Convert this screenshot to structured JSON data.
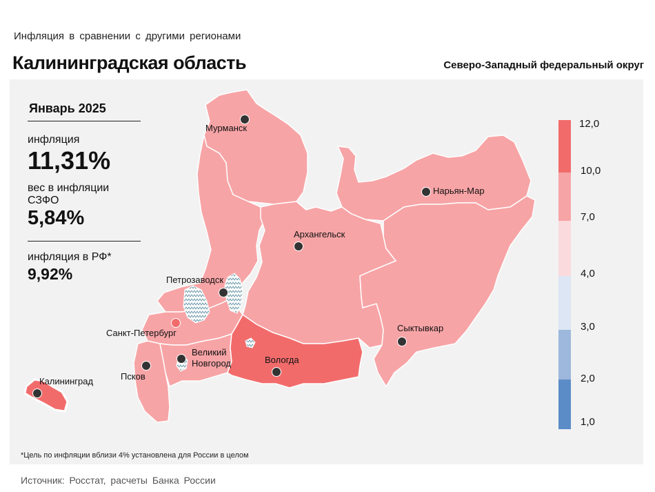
{
  "header": {
    "subtitle": "Инфляция  в сравнении  с другими  регионами",
    "region": "Калининградская область",
    "district": "Северо-Западный федеральный округ"
  },
  "info": {
    "period": "Январь 2025",
    "inflation_label": "инфляция",
    "inflation_value": "11,31%",
    "weight_label": "вес в инфляции  СЗФО",
    "weight_value": "5,84%",
    "rf_label": "инфляция  в РФ*",
    "rf_value": "9,92%"
  },
  "legend": {
    "labels": [
      "12,0",
      "10,0",
      "7,0",
      "4,0",
      "3,0",
      "2,0",
      "1,0"
    ],
    "colors": [
      "#f26b6b",
      "#f7a4a6",
      "#fadadd",
      "#dce6f4",
      "#9db8dc",
      "#5b8cc8"
    ]
  },
  "cities": [
    {
      "name": "Мурманск"
    },
    {
      "name": "Нарьян-Мар"
    },
    {
      "name": "Архангельск"
    },
    {
      "name": "Петрозаводск"
    },
    {
      "name": "Санкт-Петербург"
    },
    {
      "name": "Сыктывкар"
    },
    {
      "name": "Великий Новгород"
    },
    {
      "name": "Вологда"
    },
    {
      "name": "Псков"
    },
    {
      "name": "Калининград"
    }
  ],
  "city_label_lines": {
    "novgorod_1": "Великий",
    "novgorod_2": "Новгород"
  },
  "colors": {
    "high": "#f26b6b",
    "mid": "#f7a4a6",
    "panel": "#f2f2f2"
  },
  "footnote": "*Цель по инфляции вблизи 4% установлена для России в целом",
  "source": "Источник:  Росстат,  расчеты Банка  России"
}
